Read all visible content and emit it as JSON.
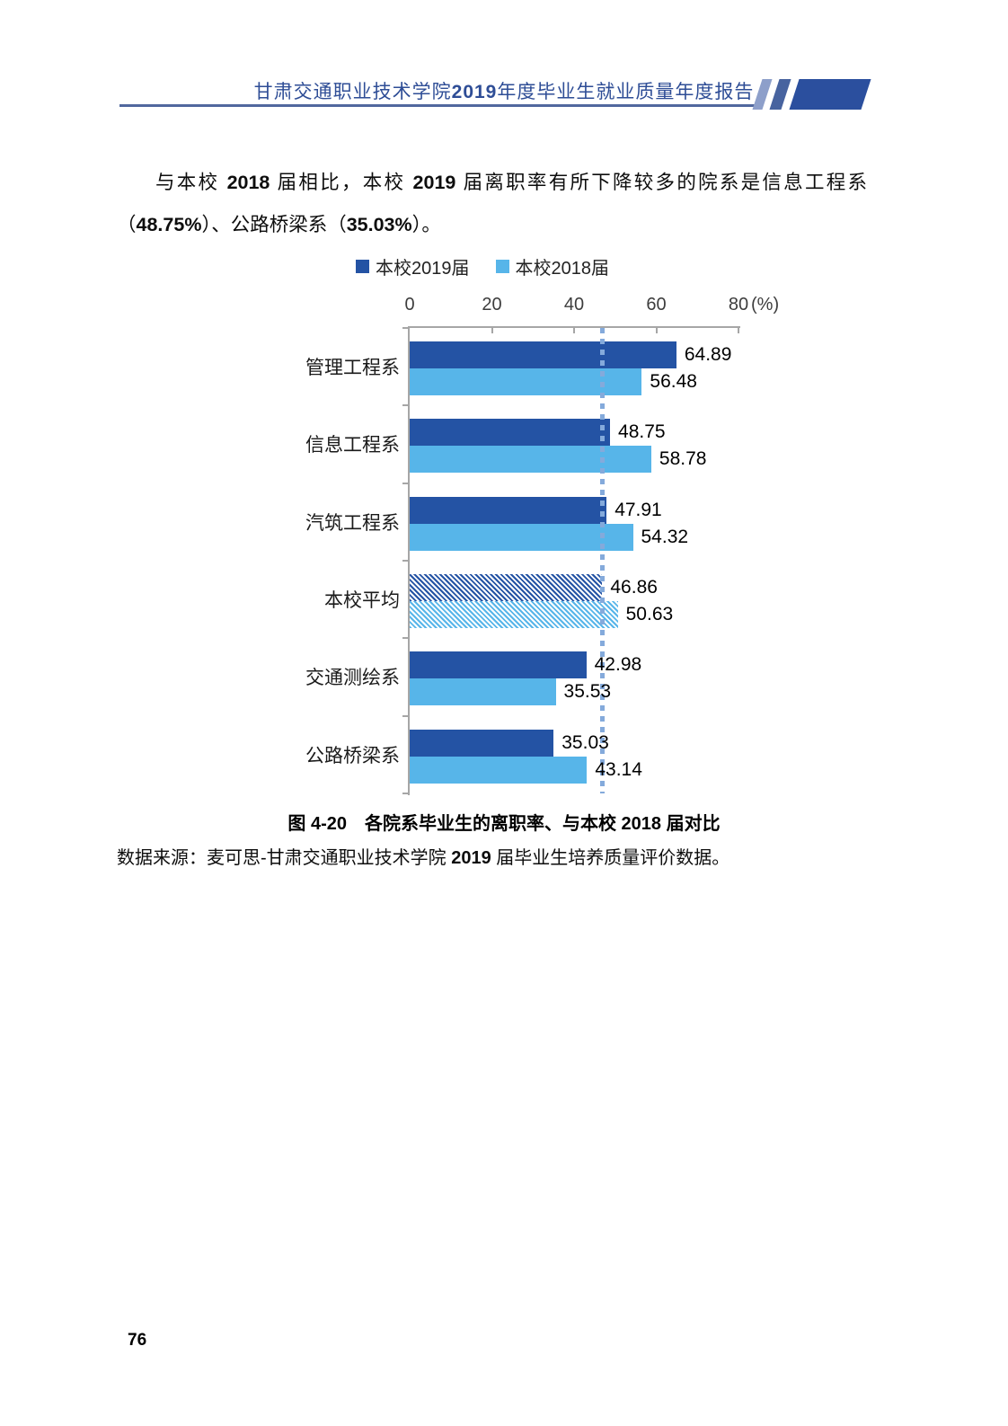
{
  "header": {
    "title_segments": [
      {
        "t": "甘肃交通职业技术学院",
        "b": false
      },
      {
        "t": "2019",
        "b": true
      },
      {
        "t": "年度毕业生就业质量年度报告",
        "b": false
      }
    ],
    "accent_color": "#2b4f9e",
    "stripe_colors": [
      "#8d9fca",
      "#47639f",
      "#2b4f9e"
    ]
  },
  "paragraph_segments": [
    {
      "t": "与本校 ",
      "b": false
    },
    {
      "t": "2018",
      "b": true
    },
    {
      "t": " 届相比，本校 ",
      "b": false
    },
    {
      "t": "2019",
      "b": true
    },
    {
      "t": " 届离职率有所下降较多的院系是信息工程系（",
      "b": false
    },
    {
      "t": "48.75%",
      "b": true
    },
    {
      "t": "）、公路桥梁系（",
      "b": false
    },
    {
      "t": "35.03%",
      "b": true
    },
    {
      "t": "）。",
      "b": false
    }
  ],
  "chart_data": {
    "type": "bar",
    "orientation": "horizontal",
    "categories": [
      "管理工程系",
      "信息工程系",
      "汽筑工程系",
      "本校平均",
      "交通测绘系",
      "公路桥梁系"
    ],
    "series": [
      {
        "name": "本校2019届",
        "color": "#2453a4",
        "values": [
          64.89,
          48.75,
          47.91,
          46.86,
          42.98,
          35.03
        ]
      },
      {
        "name": "本校2018届",
        "color": "#57b5e9",
        "values": [
          56.48,
          58.78,
          54.32,
          50.63,
          35.53,
          43.14
        ]
      }
    ],
    "hatched_category": "本校平均",
    "value_labels_decimals": 2,
    "xlim": [
      0,
      80
    ],
    "xticks": [
      0,
      20,
      40,
      60,
      80
    ],
    "unit": "(%)",
    "reference_line": {
      "value": 46.86,
      "color": "#84aadb",
      "style": "dotted"
    },
    "legend_position": "top",
    "grid": false,
    "axis_color": "#a6a6a6"
  },
  "caption": "图 4-20　各院系毕业生的离职率、与本校 2018 届对比",
  "source_segments": [
    {
      "t": "数据来源：麦可思-甘肃交通职业技术学院 ",
      "b": false
    },
    {
      "t": "2019",
      "b": true
    },
    {
      "t": " 届毕业生培养质量评价数据。",
      "b": false
    }
  ],
  "page_number": "76"
}
